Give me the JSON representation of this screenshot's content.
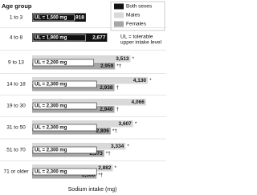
{
  "chart_data": {
    "type": "bar",
    "orientation": "horizontal",
    "category_header": "Age group",
    "xlabel": "Sodium intake (mg)",
    "categories": [
      "1 to 3",
      "4 to 8",
      "9 to 13",
      "14 to 18",
      "19 to 30",
      "31 to 50",
      "51 to 70",
      "71 or older"
    ],
    "xlim": [
      0,
      4300
    ],
    "series": [
      {
        "name": "Both sexes",
        "color": "#111111",
        "values": [
          1918,
          2677,
          null,
          null,
          null,
          null,
          null,
          null
        ],
        "value_labels": [
          "1,918",
          "2,677",
          null,
          null,
          null,
          null,
          null,
          null
        ],
        "markers": [
          null,
          null,
          null,
          null,
          null,
          null,
          null,
          null
        ]
      },
      {
        "name": "Males",
        "color": "#d9d9d9",
        "values": [
          null,
          null,
          3513,
          4130,
          4066,
          3607,
          3334,
          2882
        ],
        "value_labels": [
          null,
          null,
          "3,513",
          "4,130",
          "4,066",
          "3,607",
          "3,334",
          "2,882"
        ],
        "markers": [
          null,
          null,
          "*",
          "*",
          null,
          "*",
          "*",
          "*"
        ]
      },
      {
        "name": "Females",
        "color": "#a6a6a6",
        "values": [
          null,
          null,
          2959,
          2938,
          2940,
          2806,
          2573,
          2300
        ],
        "value_labels": [
          null,
          null,
          "2,959",
          "2,938",
          "2,940",
          "2,806",
          "2,573",
          "2,300"
        ],
        "markers": [
          null,
          null,
          "*†",
          "†",
          "†",
          "*†",
          "*†",
          "*†"
        ]
      }
    ],
    "ul_values": [
      1500,
      1900,
      2200,
      2300,
      2300,
      2300,
      2300,
      2300
    ],
    "ul_labels": [
      "UL = 1,500 mg",
      "UL = 1,900 mg",
      "UL = 2,200 mg",
      "UL = 2,300 mg",
      "UL = 2,300 mg",
      "UL = 2,300 mg",
      "UL = 2,300 mg",
      "UL = 2,300 mg"
    ],
    "note": [
      "UL = tolerable",
      "upper intake level"
    ],
    "legend": "top-right"
  }
}
